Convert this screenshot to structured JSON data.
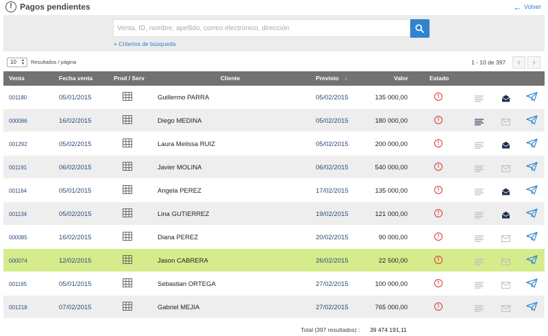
{
  "header": {
    "title": "Pagos pendientes",
    "back_label": "Volver"
  },
  "search": {
    "placeholder": "Venta, ID, nombre, apellido, correo electrónico, dirección",
    "criteria_link": "+ Criterios de búsqueda"
  },
  "pagination": {
    "per_page": "10",
    "per_page_label": "Resultados / página",
    "range": "1 - 10 de 397",
    "prev": "‹",
    "next": "›"
  },
  "table": {
    "columns": {
      "venta": "Venta",
      "fecha": "Fecha venta",
      "prod": "Prod / Serv",
      "cliente": "Cliente",
      "previsto": "Previsto",
      "valor": "Valor",
      "estado": "Estado"
    },
    "rows": [
      {
        "venta": "001180",
        "fecha": "05/01/2015",
        "cliente": "Guillermo PARRA",
        "previsto": "05/02/2015",
        "valor": "135 000,00",
        "doc_active": false,
        "mail_filled": true
      },
      {
        "venta": "000086",
        "fecha": "16/02/2015",
        "cliente": "Diego MEDINA",
        "previsto": "05/02/2015",
        "valor": "180 000,00",
        "doc_active": true,
        "mail_filled": false
      },
      {
        "venta": "001292",
        "fecha": "05/02/2015",
        "cliente": "Laura Melissa RUIZ",
        "previsto": "05/02/2015",
        "valor": "200 000,00",
        "doc_active": false,
        "mail_filled": true
      },
      {
        "venta": "001191",
        "fecha": "06/02/2015",
        "cliente": "Javier MOLINA",
        "previsto": "06/02/2015",
        "valor": "540 000,00",
        "doc_active": false,
        "mail_filled": false
      },
      {
        "venta": "001164",
        "fecha": "05/01/2015",
        "cliente": "Angela PEREZ",
        "previsto": "17/02/2015",
        "valor": "135 000,00",
        "doc_active": false,
        "mail_filled": true
      },
      {
        "venta": "001134",
        "fecha": "05/02/2015",
        "cliente": "Lina GUTIERREZ",
        "previsto": "19/02/2015",
        "valor": "121 000,00",
        "doc_active": false,
        "mail_filled": true
      },
      {
        "venta": "000085",
        "fecha": "16/02/2015",
        "cliente": "Diana PEREZ",
        "previsto": "20/02/2015",
        "valor": "90 000,00",
        "doc_active": false,
        "mail_filled": false
      },
      {
        "venta": "000074",
        "fecha": "12/02/2015",
        "cliente": "Jason CABRERA",
        "previsto": "26/02/2015",
        "valor": "22 500,00",
        "doc_active": false,
        "mail_filled": false,
        "highlight": true
      },
      {
        "venta": "001165",
        "fecha": "05/01/2015",
        "cliente": "Sebastian ORTEGA",
        "previsto": "27/02/2015",
        "valor": "100 000,00",
        "doc_active": false,
        "mail_filled": false
      },
      {
        "venta": "001218",
        "fecha": "07/02/2015",
        "cliente": "Gabriel MEJIA",
        "previsto": "27/02/2015",
        "valor": "765 000,00",
        "doc_active": false,
        "mail_filled": false
      }
    ]
  },
  "footer": {
    "total_label": "Total (397 resultados) :",
    "total_value": "39 474 191,11"
  },
  "colors": {
    "accent": "#2f84d0",
    "header_bg": "#727272",
    "highlight_row": "#d6ec8c",
    "status_red": "#d93030"
  },
  "icons": {
    "status": "alert-circle-icon",
    "product": "grid-table-icon",
    "document": "text-lines-icon",
    "mail": "envelope-icon",
    "send": "paper-plane-icon"
  }
}
